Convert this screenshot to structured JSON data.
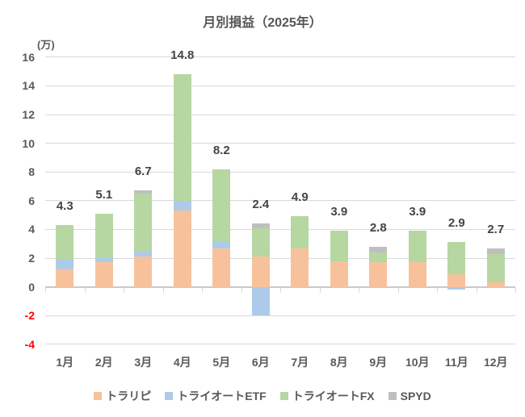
{
  "chart_data": {
    "type": "bar",
    "stacked": true,
    "title": "月別損益（2025年）",
    "unit_label": "(万)",
    "xlabel": "",
    "ylabel": "(万)",
    "categories": [
      "1月",
      "2月",
      "3月",
      "4月",
      "5月",
      "6月",
      "7月",
      "8月",
      "9月",
      "10月",
      "11月",
      "12月"
    ],
    "series": [
      {
        "name": "トラリピ",
        "color": "#F7C29B",
        "values": [
          1.2,
          1.7,
          2.1,
          5.3,
          2.7,
          2.1,
          2.7,
          1.8,
          1.7,
          1.7,
          0.9,
          0.3
        ]
      },
      {
        "name": "トライオートETF",
        "color": "#ADCBE9",
        "values": [
          0.7,
          0.3,
          0.4,
          0.7,
          0.5,
          -2.0,
          0,
          0,
          0,
          0,
          -0.2,
          0
        ]
      },
      {
        "name": "トライオートFX",
        "color": "#B6D7A2",
        "values": [
          2.4,
          3.1,
          4.0,
          8.8,
          5.0,
          2.0,
          2.2,
          2.1,
          0.7,
          2.2,
          2.2,
          2.0
        ]
      },
      {
        "name": "SPYD",
        "color": "#BFBFBF",
        "values": [
          0,
          0,
          0.2,
          0,
          0,
          0.3,
          0,
          0,
          0.4,
          0,
          0,
          0.4
        ]
      }
    ],
    "totals": [
      4.3,
      5.1,
      6.7,
      14.8,
      8.2,
      2.4,
      4.9,
      3.9,
      2.8,
      3.9,
      2.9,
      2.7
    ],
    "ylim": [
      -4,
      16
    ],
    "ytick_step": 2,
    "grid": true,
    "legend_position": "bottom",
    "colors": {
      "tick_label": "#595959",
      "negative_tick_label": "#FF0000",
      "gridline": "#D9D9D9",
      "axis_line": "#C9C9C9",
      "data_label": "#444444",
      "background": "#FFFFFF"
    }
  }
}
